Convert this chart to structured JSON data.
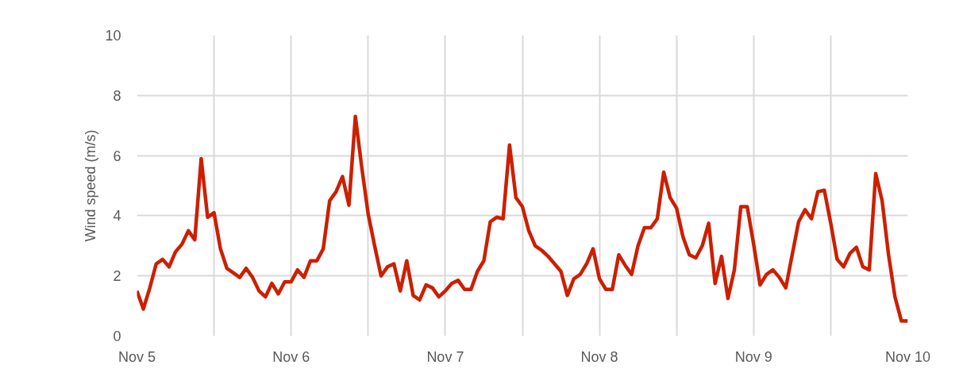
{
  "chart_data": {
    "type": "line",
    "ylabel": "Wind speed (m/s)",
    "categories": [
      "Nov 5",
      null,
      null,
      null,
      null,
      null,
      null,
      null,
      null,
      null,
      null,
      null,
      null,
      null,
      null,
      null,
      null,
      null,
      null,
      null,
      null,
      null,
      null,
      null,
      "Nov 6",
      null,
      null,
      null,
      null,
      null,
      null,
      null,
      null,
      null,
      null,
      null,
      null,
      null,
      null,
      null,
      null,
      null,
      null,
      null,
      null,
      null,
      null,
      null,
      "Nov 7",
      null,
      null,
      null,
      null,
      null,
      null,
      null,
      null,
      null,
      null,
      null,
      null,
      null,
      null,
      null,
      null,
      null,
      null,
      null,
      null,
      null,
      null,
      null,
      "Nov 8",
      null,
      null,
      null,
      null,
      null,
      null,
      null,
      null,
      null,
      null,
      null,
      null,
      null,
      null,
      null,
      null,
      null,
      null,
      null,
      null,
      null,
      null,
      null,
      "Nov 9",
      null,
      null,
      null,
      null,
      null,
      null,
      null,
      null,
      null,
      null,
      null,
      null,
      null,
      null,
      null,
      null,
      null,
      null,
      null,
      null,
      null,
      null,
      null,
      "Nov 10"
    ],
    "series": [
      {
        "color": "#cc1f00",
        "values": [
          1.5,
          0.9,
          1.6,
          2.4,
          2.55,
          2.3,
          2.8,
          3.05,
          3.5,
          3.2,
          5.9,
          3.95,
          4.1,
          2.9,
          2.25,
          2.1,
          1.95,
          2.25,
          1.95,
          1.5,
          1.3,
          1.75,
          1.4,
          1.8,
          1.8,
          2.2,
          1.95,
          2.5,
          2.5,
          2.9,
          4.5,
          4.8,
          5.3,
          4.35,
          7.3,
          5.6,
          4.05,
          3.0,
          2.0,
          2.3,
          2.4,
          1.5,
          2.5,
          1.35,
          1.2,
          1.7,
          1.6,
          1.3,
          1.5,
          1.75,
          1.85,
          1.55,
          1.55,
          2.15,
          2.5,
          3.8,
          3.95,
          3.9,
          6.35,
          4.6,
          4.3,
          3.5,
          3.0,
          2.85,
          2.65,
          2.4,
          2.15,
          1.35,
          1.9,
          2.05,
          2.4,
          2.9,
          1.9,
          1.55,
          1.55,
          2.7,
          2.35,
          2.05,
          3.0,
          3.6,
          3.6,
          3.9,
          5.45,
          4.6,
          4.25,
          3.3,
          2.7,
          2.6,
          3.0,
          3.75,
          1.75,
          2.65,
          1.25,
          2.2,
          4.3,
          4.3,
          3.05,
          1.7,
          2.05,
          2.2,
          1.95,
          1.6,
          2.7,
          3.8,
          4.2,
          3.9,
          4.8,
          4.85,
          3.75,
          2.55,
          2.3,
          2.75,
          2.95,
          2.3,
          2.2,
          5.4,
          4.5,
          2.7,
          1.3,
          0.5,
          0.5
        ]
      }
    ],
    "ylim": [
      0,
      10
    ],
    "yticks": [
      0,
      2,
      4,
      6,
      8,
      10
    ],
    "grid": true,
    "line_style": "solid"
  }
}
